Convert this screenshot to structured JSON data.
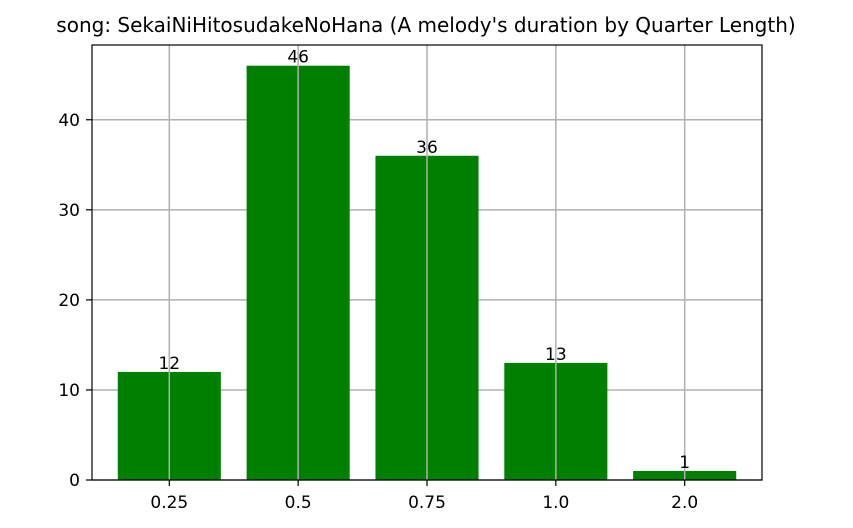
{
  "chart_data": {
    "type": "bar",
    "title": "song: SekaiNiHitosudakeNoHana (A melody's duration by Quarter Length)",
    "xlabel": "",
    "ylabel": "",
    "categories": [
      "0.25",
      "0.5",
      "0.75",
      "1.0",
      "2.0"
    ],
    "values": [
      12,
      46,
      36,
      13,
      1
    ],
    "data_labels": [
      "12",
      "46",
      "36",
      "13",
      "1"
    ],
    "ylim": [
      0,
      48.3
    ],
    "yticks": [
      0,
      10,
      20,
      30,
      40
    ],
    "ytick_labels": [
      "0",
      "10",
      "20",
      "30",
      "40"
    ],
    "grid": true,
    "bar_color": "#008000"
  }
}
